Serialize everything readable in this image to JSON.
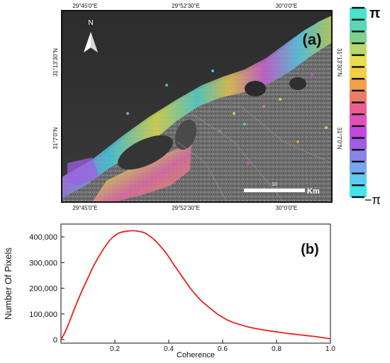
{
  "panel_a": {
    "label": "(a)",
    "north_label": "N",
    "top_ticks": [
      "29°45'0\"E",
      "29°52'30\"E",
      "30°0'0\"E"
    ],
    "bottom_ticks": [
      "29°45'0\"E",
      "29°52'30\"E",
      "30°0'0\"E"
    ],
    "left_ticks": [
      "31°13'30\"N",
      "31°7'0\"N"
    ],
    "right_ticks": [
      "31°13'30\"N",
      "31°7'0\"N"
    ],
    "scale_value": "10",
    "scale_unit": "Km",
    "phase_top": "π",
    "phase_bottom": "−π",
    "phase_colors": [
      "#49e3d0",
      "#5bd6b7",
      "#7fd08f",
      "#b8d86a",
      "#e7e04c",
      "#f4cf45",
      "#f3a04a",
      "#ec7c66",
      "#ea5f8e",
      "#e24fbd",
      "#c049de",
      "#9e5ee6",
      "#8b84e8",
      "#78a6ee",
      "#5fcbf0",
      "#47e3ea"
    ]
  },
  "chart_data": {
    "type": "line",
    "title": "(b)",
    "xlabel": "Coherence",
    "ylabel": "Number Of Pixels",
    "xlim": [
      0,
      1.0
    ],
    "ylim": [
      0,
      450000
    ],
    "x_ticks": [
      "0.2",
      "0.4",
      "0.6",
      "0.8",
      "1.0"
    ],
    "y_ticks": [
      "0",
      "100,000",
      "200,000",
      "300,000",
      "400,000"
    ],
    "grid": false,
    "series": [
      {
        "color": "#e8201a",
        "x": [
          0.0,
          0.02,
          0.05,
          0.08,
          0.1,
          0.12,
          0.15,
          0.18,
          0.2,
          0.22,
          0.25,
          0.27,
          0.3,
          0.32,
          0.35,
          0.38,
          0.4,
          0.42,
          0.45,
          0.48,
          0.5,
          0.52,
          0.55,
          0.58,
          0.6,
          0.62,
          0.65,
          0.7,
          0.75,
          0.8,
          0.85,
          0.9,
          0.95,
          1.0
        ],
        "y": [
          0,
          40000,
          120000,
          195000,
          240000,
          285000,
          340000,
          385000,
          405000,
          417000,
          423000,
          424000,
          419000,
          410000,
          385000,
          350000,
          322000,
          290000,
          245000,
          200000,
          175000,
          152000,
          125000,
          100000,
          87000,
          75000,
          63000,
          48000,
          38000,
          30000,
          23000,
          17000,
          11000,
          3000
        ]
      }
    ]
  }
}
